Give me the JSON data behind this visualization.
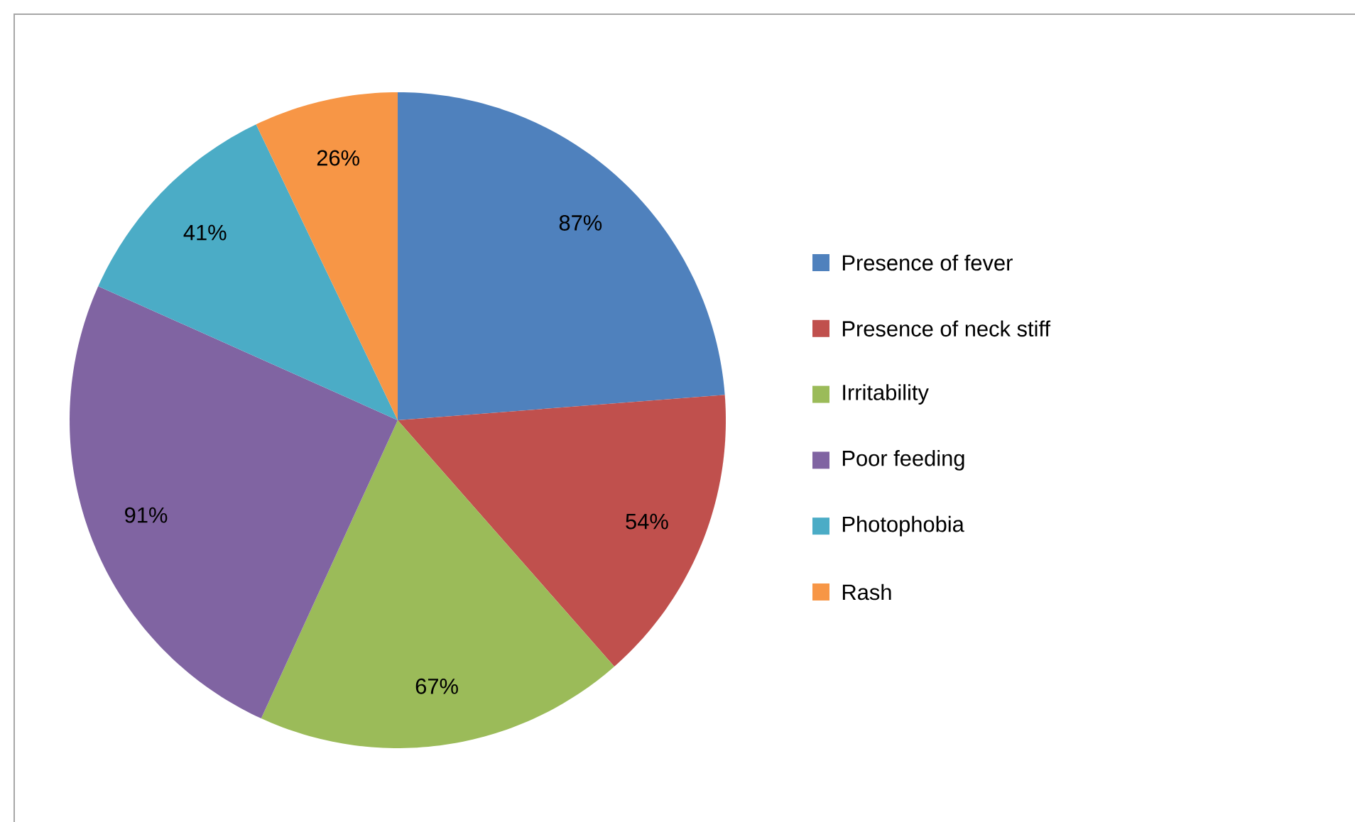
{
  "chart_data": {
    "type": "pie",
    "categories": [
      "Presence of fever",
      "Presence of neck stiff",
      "Irritability",
      "Poor feeding",
      "Photophobia",
      "Rash"
    ],
    "values": [
      87,
      54,
      67,
      91,
      41,
      26
    ],
    "value_labels": [
      "87%",
      "54%",
      "67%",
      "91%",
      "41%",
      "26%"
    ],
    "colors": [
      "#4f81bd",
      "#c0504d",
      "#9bbb59",
      "#8064a2",
      "#4bacc6",
      "#f79646"
    ],
    "legend": "right"
  }
}
